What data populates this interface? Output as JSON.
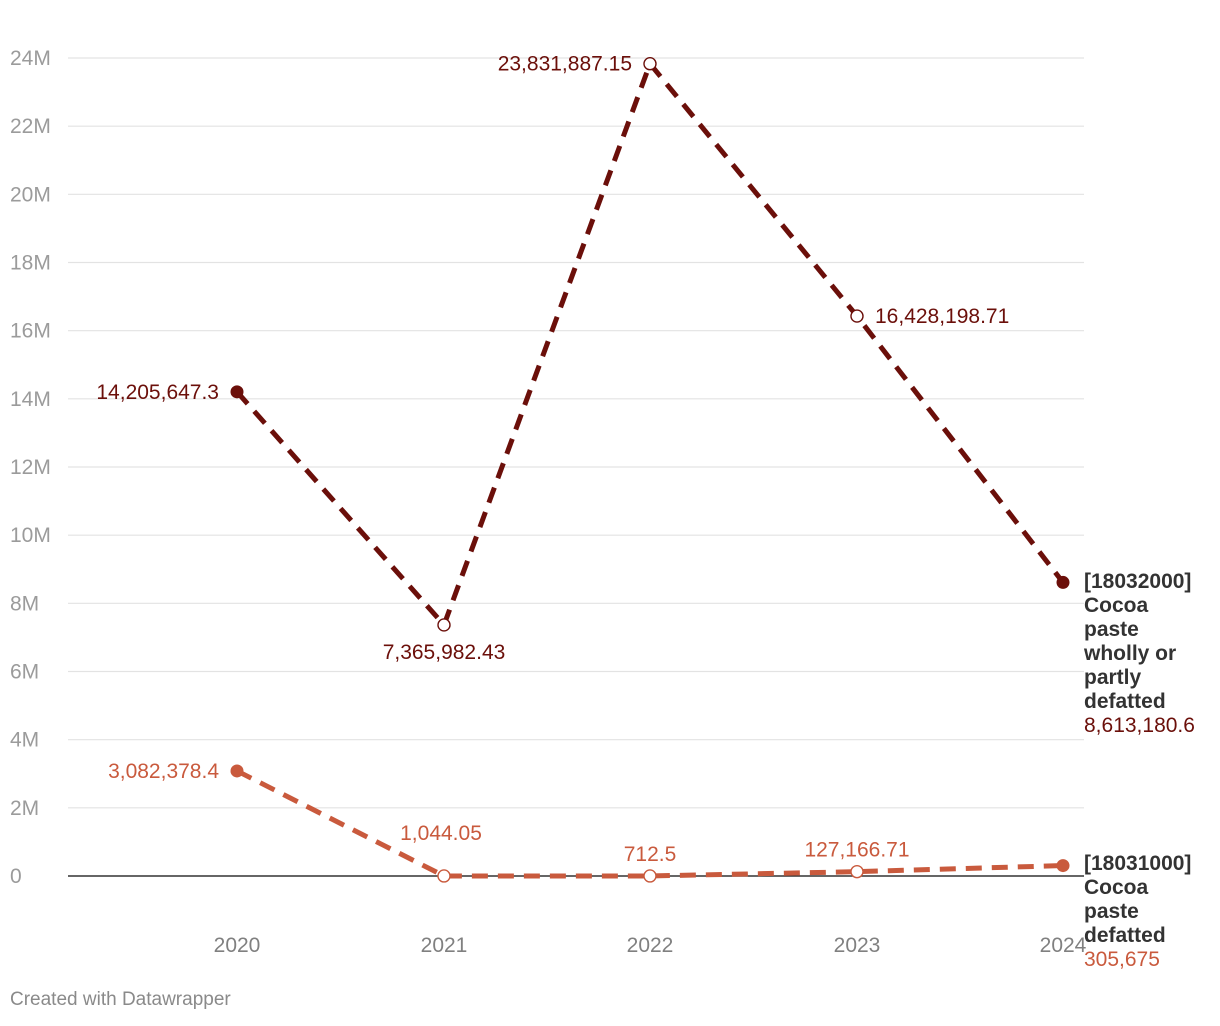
{
  "chart_data": {
    "type": "line",
    "x": [
      "2020",
      "2021",
      "2022",
      "2023",
      "2024"
    ],
    "yticks": [
      "0",
      "2M",
      "4M",
      "6M",
      "8M",
      "10M",
      "12M",
      "14M",
      "16M",
      "18M",
      "20M",
      "22M",
      "24M"
    ],
    "ylim": [
      0,
      24000000
    ],
    "grid": true,
    "series": [
      {
        "name_lines": [
          "[18032000]",
          "Cocoa",
          "paste",
          "wholly or",
          "partly",
          "defatted"
        ],
        "color": "#6b0f0a",
        "values": [
          14205647.3,
          7365982.43,
          23831887.15,
          16428198.71,
          8613180.6
        ],
        "labels": [
          "14,205,647.3",
          "7,365,982.43",
          "23,831,887.15",
          "16,428,198.71",
          "8,613,180.6"
        ]
      },
      {
        "name_lines": [
          "[18031000]",
          "Cocoa",
          "paste",
          "defatted"
        ],
        "color": "#c95a3d",
        "values": [
          3082378.4,
          1044.05,
          712.5,
          127166.71,
          305675
        ],
        "labels": [
          "3,082,378.4",
          "1,044.05",
          "712.5",
          "127,166.71",
          "305,675"
        ]
      }
    ]
  },
  "footer": {
    "credit": "Created with Datawrapper"
  }
}
